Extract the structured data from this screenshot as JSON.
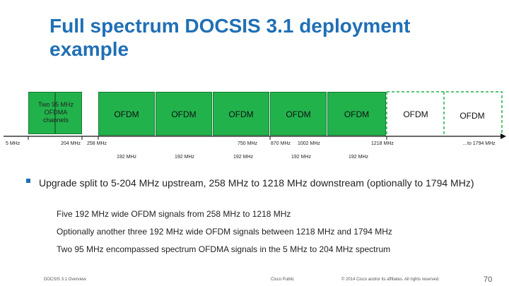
{
  "title": "Full spectrum DOCSIS 3.1 deployment example",
  "blocks": {
    "upstream": [
      "Two 95 MHz",
      "OFDMA",
      "channels"
    ],
    "ofdm_label": "OFDM"
  },
  "axis_ticks": {
    "t5": "5 MHz",
    "t204": "204 MHz",
    "t258": "258 MHz",
    "t750": "750 MHz",
    "t870": "870 MHz",
    "t1002": "1002 MHz",
    "t1218": "1218 MHz",
    "t1794": "…to 1794 MHz"
  },
  "bandwidth_label": "192 MHz",
  "bullet": "Upgrade split to 5-204 MHz upstream, 258 MHz to 1218 MHz downstream (optionally to 1794 MHz)",
  "subpoints": [
    "Five 192 MHz wide OFDM signals from 258 MHz to 1218 MHz",
    "Optionally another three 192 MHz wide OFDM signals between 1218 MHz and 1794 MHz",
    "Two 95 MHz encompassed spectrum OFDMA signals in the 5 MHz to 204 MHz spectrum"
  ],
  "footer": {
    "left": "DOCSIS 3.1 Overview",
    "center": "Cisco Public",
    "right": "© 2014 Cisco and/or its affiliates. All rights reserved.",
    "page": "70"
  },
  "colors": {
    "title": "#1f6fb5",
    "block_green": "#22b24c",
    "optional_outline": "#22b24c"
  }
}
